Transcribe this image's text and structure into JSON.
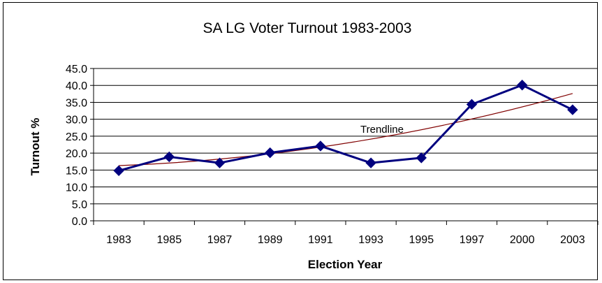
{
  "chart_data": {
    "type": "line",
    "title": "SA LG Voter Turnout 1983-2003",
    "xlabel": "Election Year",
    "ylabel": "Turnout %",
    "categories": [
      "1983",
      "1985",
      "1987",
      "1989",
      "1991",
      "1993",
      "1995",
      "1997",
      "2000",
      "2003"
    ],
    "series": [
      {
        "values": [
          14.8,
          18.9,
          17.1,
          20.1,
          22.1,
          17.1,
          18.6,
          34.4,
          40.1,
          32.8
        ]
      }
    ],
    "trendline": {
      "type": "polynomial",
      "label": "Trendline",
      "start": 16.3,
      "end": 37.6
    },
    "ylim": [
      0,
      45
    ],
    "yticks": [
      "0.0",
      "5.0",
      "10.0",
      "15.0",
      "20.0",
      "25.0",
      "30.0",
      "35.0",
      "40.0",
      "45.0"
    ],
    "grid": true,
    "colors": {
      "series": "#00007f",
      "trendline": "#800000",
      "gridline": "#000000"
    }
  }
}
